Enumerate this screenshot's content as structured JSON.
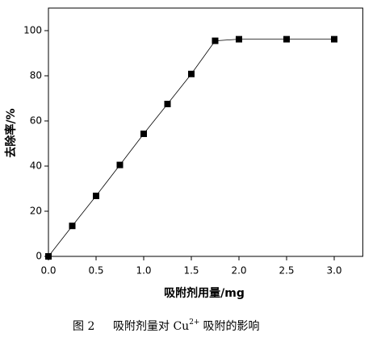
{
  "chart_data": {
    "type": "line",
    "x_label": "吸附剂用量/mg",
    "y_label": "去除率/%",
    "caption": {
      "figure": "图 2",
      "text_before": "吸附剂量对 Cu",
      "superscript": "2+",
      "text_after": "吸附的影响"
    },
    "x": [
      0,
      0.25,
      0.5,
      0.75,
      1.0,
      1.25,
      1.5,
      1.75,
      2.0,
      2.5,
      3.0
    ],
    "series": [
      {
        "color": "#000000",
        "values": [
          0,
          13.5,
          26.8,
          40.5,
          54.3,
          67.5,
          80.8,
          95.5,
          96.2,
          96.2,
          96.2
        ]
      }
    ],
    "xlim": [
      0,
      3.3
    ],
    "ylim": [
      0,
      110
    ],
    "xticks": [
      {
        "value": 0,
        "label": "0.0"
      },
      {
        "value": 0.5,
        "label": "0.5"
      },
      {
        "value": 1.0,
        "label": "1.0"
      },
      {
        "value": 1.5,
        "label": "1.5"
      },
      {
        "value": 2.0,
        "label": "2.0"
      },
      {
        "value": 2.5,
        "label": "2.5"
      },
      {
        "value": 3.0,
        "label": "3.0"
      }
    ],
    "yticks": [
      0,
      20,
      40,
      60,
      80,
      100
    ]
  }
}
